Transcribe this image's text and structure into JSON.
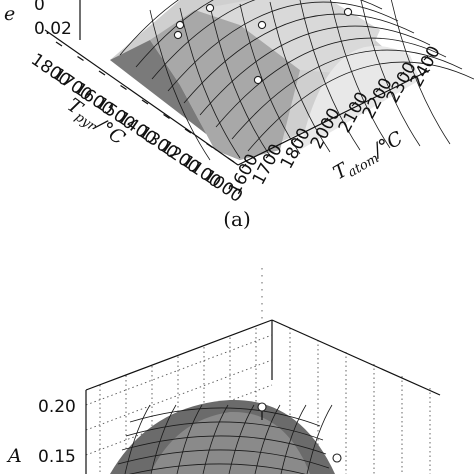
{
  "chart_data": [
    {
      "type": "surface",
      "panel_label": "(a)",
      "z_label_fragment": "e",
      "x_label": {
        "prefix": "T",
        "sub": "atom",
        "suffix": "/°C"
      },
      "y_label": {
        "prefix": "T",
        "sub": "pyr",
        "suffix": "/°C"
      },
      "x_ticks": [
        "1600",
        "1700",
        "1800",
        "2000",
        "2100",
        "2200",
        "2300",
        "2400"
      ],
      "y_ticks": [
        "1000",
        "1100",
        "1200",
        "1300",
        "1400",
        "1500",
        "1600",
        "1700",
        "1800"
      ],
      "z_ticks_visible": [
        "0.02",
        "0"
      ],
      "xlim": [
        1600,
        2400
      ],
      "ylim": [
        1000,
        1800
      ],
      "data_markers": 6
    },
    {
      "type": "surface",
      "z_label_fragment": "A",
      "z_ticks_visible": [
        "0.20",
        "0.15"
      ],
      "data_markers": 2
    }
  ]
}
